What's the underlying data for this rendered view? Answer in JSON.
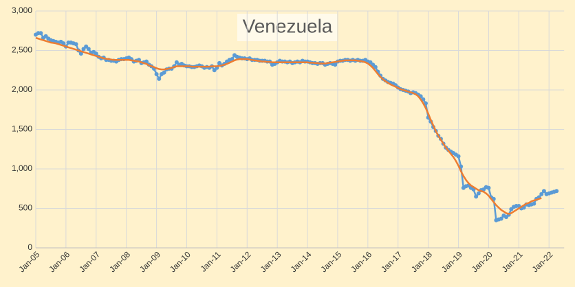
{
  "chart_data": {
    "type": "line",
    "title": "Venezuela",
    "categories": [
      "Jan-05",
      null,
      null,
      null,
      null,
      null,
      null,
      null,
      null,
      null,
      null,
      null,
      "Jan-06",
      null,
      null,
      null,
      null,
      null,
      null,
      null,
      null,
      null,
      null,
      null,
      "Jan-07",
      null,
      null,
      null,
      null,
      null,
      null,
      null,
      null,
      null,
      null,
      null,
      "Jan-08",
      null,
      null,
      null,
      null,
      null,
      null,
      null,
      null,
      null,
      null,
      null,
      "Jan-09",
      null,
      null,
      null,
      null,
      null,
      null,
      null,
      null,
      null,
      null,
      null,
      "Jan-10",
      null,
      null,
      null,
      null,
      null,
      null,
      null,
      null,
      null,
      null,
      null,
      "Jan-11",
      null,
      null,
      null,
      null,
      null,
      null,
      null,
      null,
      null,
      null,
      null,
      "Jan-12",
      null,
      null,
      null,
      null,
      null,
      null,
      null,
      null,
      null,
      null,
      null,
      "Jan-13",
      null,
      null,
      null,
      null,
      null,
      null,
      null,
      null,
      null,
      null,
      null,
      "Jan-14",
      null,
      null,
      null,
      null,
      null,
      null,
      null,
      null,
      null,
      null,
      null,
      "Jan-15",
      null,
      null,
      null,
      null,
      null,
      null,
      null,
      null,
      null,
      null,
      null,
      "Jan-16",
      null,
      null,
      null,
      null,
      null,
      null,
      null,
      null,
      null,
      null,
      null,
      "Jan-17",
      null,
      null,
      null,
      null,
      null,
      null,
      null,
      null,
      null,
      null,
      null,
      "Jan-18",
      null,
      null,
      null,
      null,
      null,
      null,
      null,
      null,
      null,
      null,
      null,
      "Jan-19",
      null,
      null,
      null,
      null,
      null,
      null,
      null,
      null,
      null,
      null,
      null,
      "Jan-20",
      null,
      null,
      null,
      null,
      null,
      null,
      null,
      null,
      null,
      null,
      null,
      "Jan-21",
      null,
      null,
      null,
      null,
      null,
      null,
      null,
      null,
      null,
      null,
      null,
      "Jan-22",
      null,
      null,
      null
    ],
    "series": [
      {
        "color": "#5b9bd5",
        "markers": true,
        "values": [
          2700,
          2720,
          2720,
          2660,
          2680,
          2650,
          2630,
          2620,
          2610,
          2600,
          2610,
          2590,
          2550,
          2600,
          2600,
          2590,
          2580,
          2500,
          2460,
          2520,
          2550,
          2520,
          2470,
          2480,
          2460,
          2420,
          2400,
          2410,
          2380,
          2380,
          2370,
          2370,
          2360,
          2380,
          2390,
          2390,
          2400,
          2410,
          2390,
          2360,
          2370,
          2380,
          2340,
          2350,
          2360,
          2320,
          2300,
          2270,
          2200,
          2140,
          2200,
          2220,
          2260,
          2270,
          2270,
          2300,
          2350,
          2320,
          2330,
          2310,
          2300,
          2300,
          2290,
          2290,
          2300,
          2310,
          2300,
          2280,
          2290,
          2280,
          2300,
          2250,
          2280,
          2340,
          2310,
          2330,
          2360,
          2380,
          2390,
          2440,
          2420,
          2410,
          2400,
          2400,
          2390,
          2400,
          2380,
          2380,
          2380,
          2370,
          2370,
          2370,
          2360,
          2360,
          2320,
          2330,
          2350,
          2370,
          2360,
          2360,
          2350,
          2360,
          2340,
          2350,
          2360,
          2350,
          2370,
          2360,
          2360,
          2350,
          2340,
          2340,
          2330,
          2340,
          2340,
          2320,
          2330,
          2340,
          2330,
          2320,
          2360,
          2370,
          2370,
          2380,
          2380,
          2370,
          2380,
          2370,
          2380,
          2370,
          2370,
          2380,
          2360,
          2350,
          2320,
          2290,
          2230,
          2180,
          2140,
          2120,
          2100,
          2090,
          2080,
          2060,
          2030,
          2010,
          2000,
          1990,
          1980,
          1960,
          1970,
          1960,
          1940,
          1920,
          1880,
          1830,
          1650,
          1600,
          1530,
          1480,
          1420,
          1380,
          1320,
          1270,
          1240,
          1220,
          1200,
          1180,
          1160,
          1030,
          760,
          780,
          790,
          760,
          740,
          650,
          690,
          730,
          740,
          770,
          760,
          640,
          620,
          350,
          360,
          370,
          410,
          390,
          420,
          490,
          520,
          530,
          530,
          500,
          510,
          550,
          540,
          550,
          560,
          620,
          640,
          680,
          720,
          680,
          690,
          700,
          710,
          720
        ]
      },
      {
        "color": "#ed7d31",
        "markers": false,
        "values": [
          2660,
          2650,
          2640,
          2630,
          2620,
          2610,
          2600,
          2595,
          2590,
          2580,
          2570,
          2560,
          2550,
          2540,
          2530,
          2520,
          2510,
          2500,
          2490,
          2480,
          2470,
          2460,
          2450,
          2440,
          2430,
          2420,
          2410,
          2400,
          2395,
          2390,
          2385,
          2380,
          2380,
          2380,
          2380,
          2380,
          2380,
          2380,
          2375,
          2370,
          2365,
          2360,
          2350,
          2340,
          2330,
          2310,
          2300,
          2290,
          2275,
          2265,
          2260,
          2260,
          2265,
          2270,
          2280,
          2290,
          2300,
          2300,
          2300,
          2300,
          2300,
          2300,
          2295,
          2295,
          2295,
          2295,
          2295,
          2295,
          2295,
          2295,
          2300,
          2300,
          2300,
          2305,
          2310,
          2320,
          2330,
          2345,
          2360,
          2375,
          2385,
          2390,
          2390,
          2390,
          2390,
          2385,
          2380,
          2375,
          2370,
          2365,
          2360,
          2360,
          2355,
          2355,
          2350,
          2350,
          2350,
          2350,
          2350,
          2350,
          2350,
          2350,
          2350,
          2350,
          2350,
          2350,
          2350,
          2350,
          2350,
          2345,
          2345,
          2340,
          2340,
          2335,
          2335,
          2335,
          2340,
          2345,
          2350,
          2355,
          2360,
          2365,
          2370,
          2375,
          2375,
          2375,
          2375,
          2375,
          2370,
          2365,
          2360,
          2350,
          2335,
          2310,
          2280,
          2240,
          2200,
          2165,
          2135,
          2110,
          2090,
          2070,
          2055,
          2040,
          2025,
          2010,
          2000,
          1990,
          1980,
          1970,
          1960,
          1945,
          1920,
          1880,
          1830,
          1770,
          1700,
          1620,
          1550,
          1480,
          1420,
          1370,
          1320,
          1270,
          1230,
          1190,
          1150,
          1100,
          1040,
          970,
          910,
          860,
          820,
          790,
          770,
          750,
          730,
          720,
          710,
          690,
          660,
          620,
          580,
          540,
          510,
          480,
          460,
          440,
          430,
          440,
          460,
          480,
          500,
          520,
          540,
          560,
          570,
          590,
          600,
          610,
          620,
          630,
          null,
          null,
          null,
          null,
          null,
          null
        ]
      }
    ],
    "ylim": [
      0,
      3000
    ],
    "yticks": [
      0,
      500,
      {
        "value": 1000,
        "label": "1,000"
      },
      {
        "value": 1500,
        "label": "1,500"
      },
      {
        "value": 2000,
        "label": "2,000"
      },
      {
        "value": 2500,
        "label": "2,500"
      },
      {
        "value": 3000,
        "label": "3,000"
      }
    ],
    "grid": true
  }
}
